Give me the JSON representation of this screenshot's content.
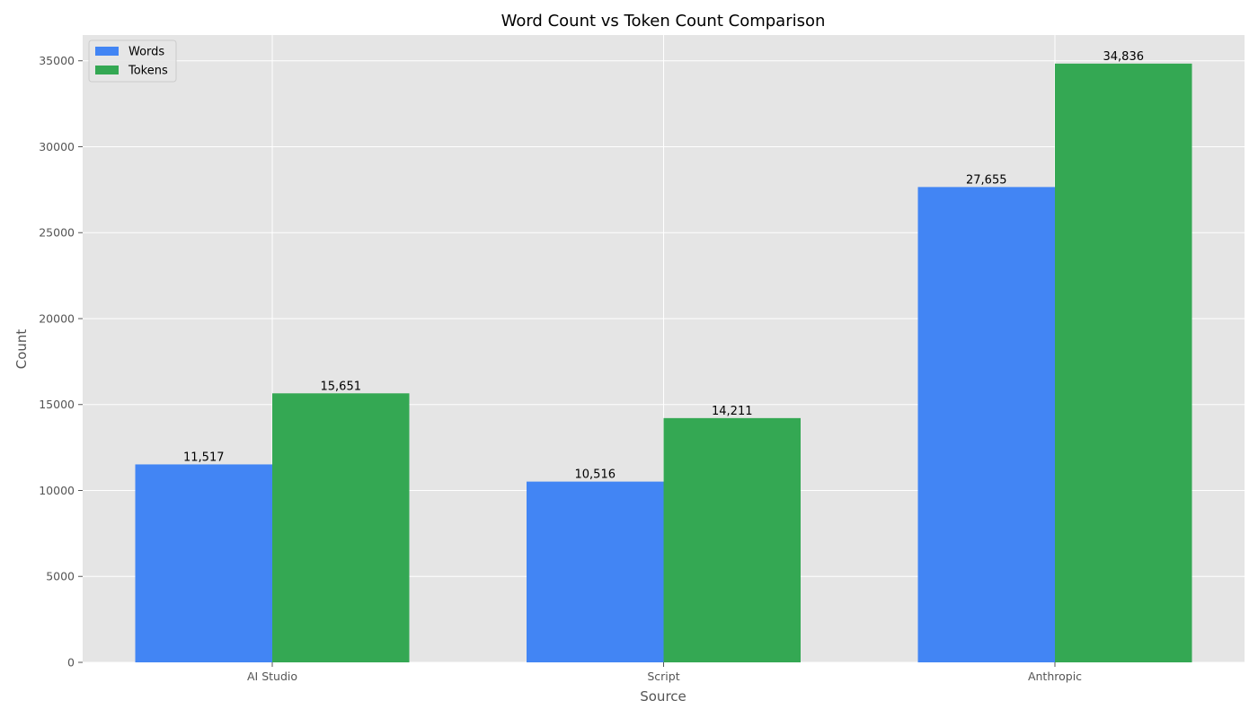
{
  "chart_data": {
    "type": "bar",
    "title": "Word Count vs Token Count Comparison",
    "xlabel": "Source",
    "ylabel": "Count",
    "categories": [
      "AI Studio",
      "Script",
      "Anthropic"
    ],
    "series": [
      {
        "name": "Words",
        "color": "#4285f4",
        "values": [
          11517,
          10516,
          27655
        ],
        "labels": [
          "11,517",
          "10,516",
          "27,655"
        ]
      },
      {
        "name": "Tokens",
        "color": "#34a853",
        "values": [
          15651,
          14211,
          34836
        ],
        "labels": [
          "15,651",
          "14,211",
          "34,836"
        ]
      }
    ],
    "ylim": [
      0,
      36500
    ],
    "yticks": [
      0,
      5000,
      10000,
      15000,
      20000,
      25000,
      30000,
      35000
    ],
    "ytick_labels": [
      "0",
      "5000",
      "10000",
      "15000",
      "20000",
      "25000",
      "30000",
      "35000"
    ],
    "grid": true,
    "legend_position": "top-left",
    "plot_background": "#e5e5e5",
    "grid_color": "#ffffff"
  }
}
